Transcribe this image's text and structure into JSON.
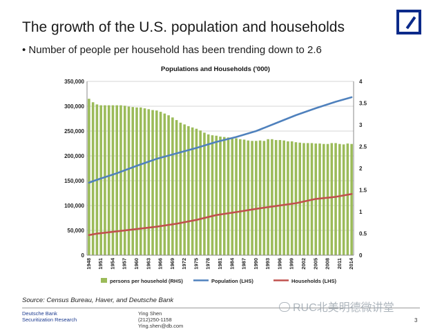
{
  "slide": {
    "title": "The growth of the U.S. population and households",
    "bullet": "• Number of people per household has been trending down to 2.6",
    "source": "Source: Census Bureau, Haver, and Deutsche Bank",
    "footer": {
      "company_line1": "Deutsche Bank",
      "company_line2": "Securitization Research",
      "contact_name": "Ying Shen",
      "contact_phone": "(212)250-1158",
      "contact_email": "Ying.shen@db.com",
      "page_number": "3"
    },
    "watermark": "RUC北美明德微讲堂"
  },
  "colors": {
    "bars": "#9bbb59",
    "population": "#4f81bd",
    "households": "#c0504d",
    "logo": "#0b2a8a"
  },
  "chart_data": {
    "type": "bar",
    "title": "Populations and Households ('000)",
    "x_start": 1948,
    "x_end": 2014,
    "tick_labels": [
      "1948",
      "1951",
      "1954",
      "1957",
      "1960",
      "1963",
      "1966",
      "1969",
      "1972",
      "1975",
      "1978",
      "1981",
      "1984",
      "1987",
      "1990",
      "1993",
      "1996",
      "1999",
      "2002",
      "2005",
      "2008",
      "2011",
      "2014"
    ],
    "ylim_left": [
      0,
      350000
    ],
    "yticks_left": [
      "0",
      "50,000",
      "100,000",
      "150,000",
      "200,000",
      "250,000",
      "300,000",
      "350,000"
    ],
    "ylim_right": [
      0,
      4
    ],
    "yticks_right": [
      "0",
      "0.5",
      "1",
      "1.5",
      "2",
      "2.5",
      "3",
      "3.5",
      "4"
    ],
    "legend": [
      "persons per household (RHS)",
      "Population (LHS)",
      "Households (LHS)"
    ],
    "series": [
      {
        "name": "persons per household (RHS)",
        "axis": "right",
        "kind": "bar",
        "values": [
          3.6,
          3.52,
          3.47,
          3.45,
          3.45,
          3.45,
          3.45,
          3.45,
          3.45,
          3.44,
          3.42,
          3.41,
          3.4,
          3.4,
          3.38,
          3.36,
          3.34,
          3.33,
          3.3,
          3.26,
          3.22,
          3.17,
          3.11,
          3.05,
          3.01,
          2.97,
          2.94,
          2.91,
          2.87,
          2.82,
          2.78,
          2.76,
          2.75,
          2.73,
          2.72,
          2.71,
          2.69,
          2.69,
          2.67,
          2.66,
          2.64,
          2.63,
          2.63,
          2.64,
          2.63,
          2.67,
          2.67,
          2.65,
          2.65,
          2.64,
          2.62,
          2.62,
          2.6,
          2.59,
          2.58,
          2.58,
          2.58,
          2.57,
          2.57,
          2.56,
          2.56,
          2.58,
          2.58,
          2.56,
          2.55,
          2.57,
          2.56
        ]
      },
      {
        "name": "Population (LHS)",
        "axis": "left",
        "kind": "line",
        "x": [
          1948,
          1950,
          1955,
          1960,
          1965,
          1970,
          1975,
          1980,
          1985,
          1990,
          1995,
          2000,
          2005,
          2010,
          2014
        ],
        "values": [
          146000,
          152000,
          165000,
          180000,
          194000,
          205000,
          216000,
          228000,
          238000,
          250000,
          266000,
          282000,
          296000,
          309000,
          318000
        ]
      },
      {
        "name": "Households (LHS)",
        "axis": "left",
        "kind": "line",
        "x": [
          1948,
          1950,
          1955,
          1960,
          1965,
          1970,
          1975,
          1980,
          1985,
          1990,
          1995,
          2000,
          2005,
          2010,
          2014
        ],
        "values": [
          40500,
          43500,
          48000,
          52600,
          57400,
          63400,
          71100,
          80800,
          86800,
          93300,
          99000,
          104700,
          113300,
          117500,
          123200
        ]
      }
    ]
  }
}
